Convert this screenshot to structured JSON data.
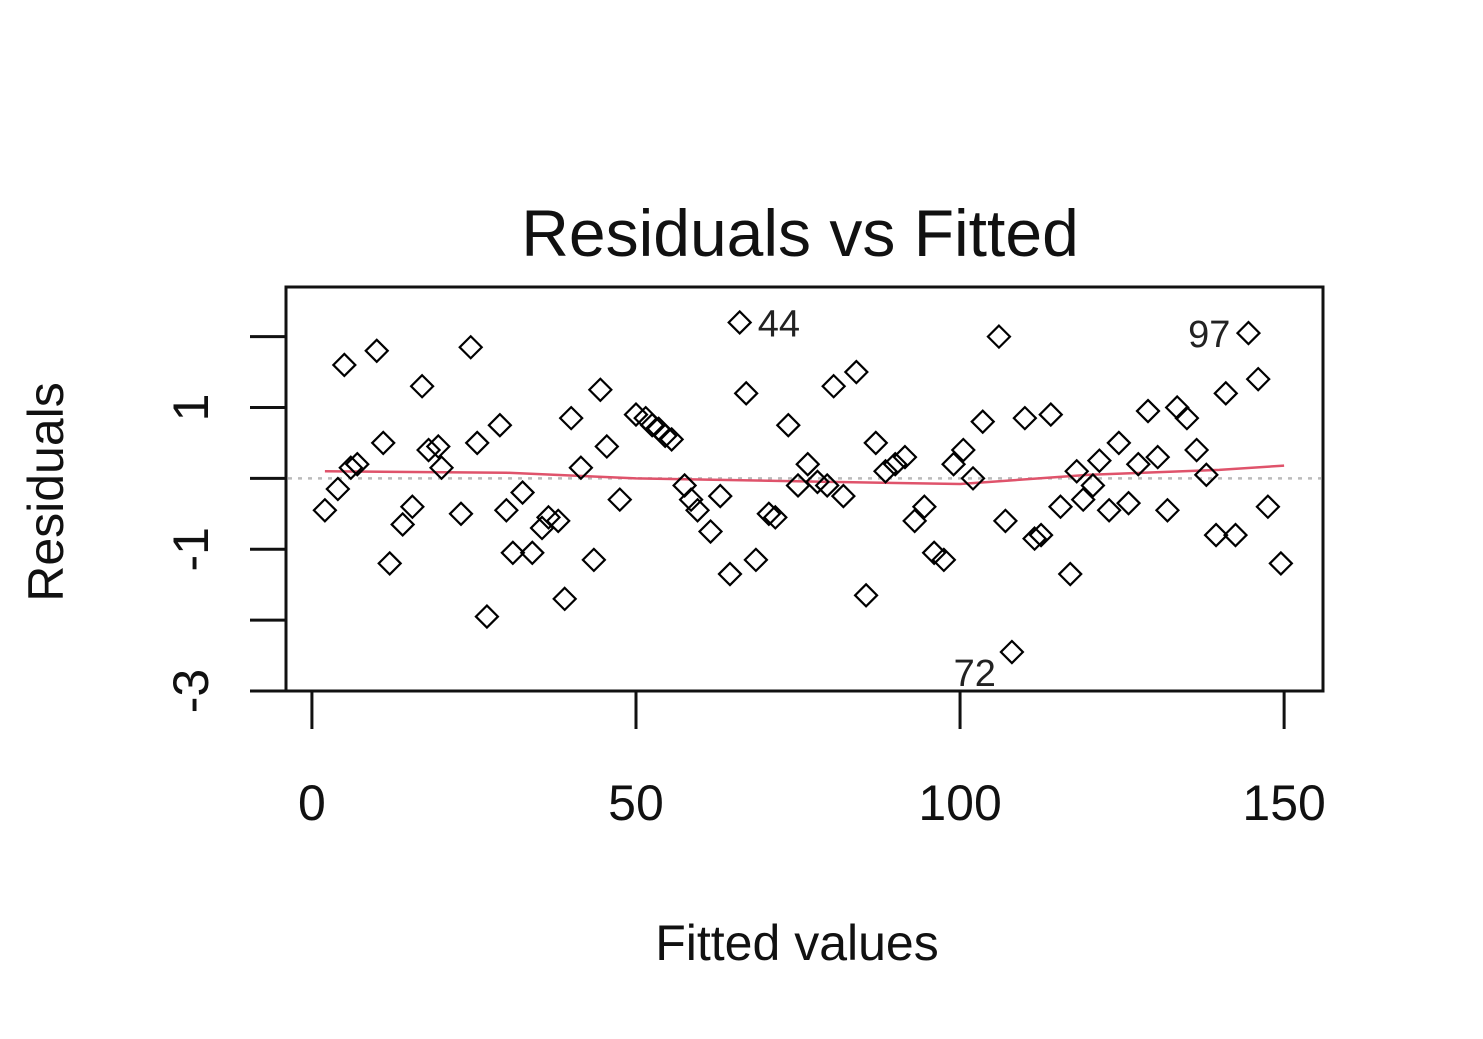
{
  "chart_data": {
    "type": "scatter",
    "title": "Residuals vs Fitted",
    "xlabel": "Fitted values",
    "ylabel": "Residuals",
    "xlim": [
      -4,
      156
    ],
    "ylim": [
      -3,
      2.7
    ],
    "x_ticks": [
      0,
      50,
      100,
      150
    ],
    "x_tick_labels": [
      "0",
      "50",
      "100",
      "150"
    ],
    "y_ticks": [
      -3,
      -2,
      -1,
      0,
      1,
      2
    ],
    "y_tick_labels": [
      "-3",
      "",
      "-1",
      "",
      "1",
      ""
    ],
    "grid": false,
    "reference_line": {
      "y": 0,
      "style": "dotted",
      "color": "#bbbbbb"
    },
    "smoother_color": "#df536b",
    "point_color": "#000000",
    "point_marker": "open-diamond",
    "points": [
      [
        2,
        -0.45
      ],
      [
        4,
        -0.15
      ],
      [
        5,
        1.6
      ],
      [
        6,
        0.15
      ],
      [
        7,
        0.2
      ],
      [
        10,
        1.8
      ],
      [
        11,
        0.5
      ],
      [
        12,
        -1.2
      ],
      [
        14,
        -0.65
      ],
      [
        15.5,
        -0.4
      ],
      [
        17,
        1.3
      ],
      [
        18,
        0.4
      ],
      [
        19.5,
        0.45
      ],
      [
        20,
        0.15
      ],
      [
        23,
        -0.5
      ],
      [
        24.5,
        1.85
      ],
      [
        25.5,
        0.5
      ],
      [
        27,
        -1.95
      ],
      [
        29,
        0.75
      ],
      [
        30,
        -0.45
      ],
      [
        31,
        -1.05
      ],
      [
        32.5,
        -0.2
      ],
      [
        34,
        -1.05
      ],
      [
        35.5,
        -0.7
      ],
      [
        36.5,
        -0.55
      ],
      [
        38,
        -0.6
      ],
      [
        39,
        -1.7
      ],
      [
        40,
        0.85
      ],
      [
        41.5,
        0.15
      ],
      [
        43.5,
        -1.15
      ],
      [
        44.5,
        1.25
      ],
      [
        45.5,
        0.45
      ],
      [
        47.5,
        -0.3
      ],
      [
        50,
        0.9
      ],
      [
        51.5,
        0.85
      ],
      [
        52.5,
        0.75
      ],
      [
        53.5,
        0.7
      ],
      [
        54.5,
        0.6
      ],
      [
        55.5,
        0.55
      ],
      [
        57.5,
        -0.1
      ],
      [
        58.5,
        -0.3
      ],
      [
        59.5,
        -0.45
      ],
      [
        61.5,
        -0.75
      ],
      [
        63,
        -0.25
      ],
      [
        64.5,
        -1.35
      ],
      [
        66,
        2.2
      ],
      [
        67,
        1.2
      ],
      [
        68.5,
        -1.15
      ],
      [
        70.5,
        -0.5
      ],
      [
        71.5,
        -0.55
      ],
      [
        73.5,
        0.75
      ],
      [
        75,
        -0.1
      ],
      [
        76.5,
        0.2
      ],
      [
        78,
        -0.05
      ],
      [
        79.5,
        -0.1
      ],
      [
        80.5,
        1.3
      ],
      [
        82,
        -0.25
      ],
      [
        84,
        1.5
      ],
      [
        85.5,
        -1.65
      ],
      [
        87,
        0.5
      ],
      [
        88.5,
        0.1
      ],
      [
        90,
        0.2
      ],
      [
        91.5,
        0.3
      ],
      [
        93,
        -0.6
      ],
      [
        94.5,
        -0.4
      ],
      [
        96,
        -1.05
      ],
      [
        97.5,
        -1.15
      ],
      [
        99,
        0.2
      ],
      [
        100.5,
        0.4
      ],
      [
        102,
        0.0
      ],
      [
        103.5,
        0.8
      ],
      [
        106,
        2.0
      ],
      [
        107,
        -0.6
      ],
      [
        108,
        -2.45
      ],
      [
        110,
        0.85
      ],
      [
        111.5,
        -0.85
      ],
      [
        112.5,
        -0.8
      ],
      [
        114,
        0.9
      ],
      [
        115.5,
        -0.4
      ],
      [
        117,
        -1.35
      ],
      [
        118,
        0.1
      ],
      [
        119,
        -0.3
      ],
      [
        120.5,
        -0.1
      ],
      [
        121.5,
        0.25
      ],
      [
        123,
        -0.45
      ],
      [
        124.5,
        0.5
      ],
      [
        126,
        -0.35
      ],
      [
        127.5,
        0.2
      ],
      [
        129,
        0.95
      ],
      [
        130.5,
        0.3
      ],
      [
        132,
        -0.45
      ],
      [
        133.5,
        1.0
      ],
      [
        135,
        0.85
      ],
      [
        136.5,
        0.4
      ],
      [
        138,
        0.05
      ],
      [
        139.5,
        -0.8
      ],
      [
        141,
        1.2
      ],
      [
        142.5,
        -0.8
      ],
      [
        144.5,
        2.05
      ],
      [
        146,
        1.4
      ],
      [
        147.5,
        -0.4
      ],
      [
        149.5,
        -1.2
      ]
    ],
    "labeled_points": [
      {
        "label": "44",
        "x": 66,
        "y": 2.2
      },
      {
        "label": "97",
        "x": 144.5,
        "y": 2.05
      },
      {
        "label": "72",
        "x": 108,
        "y": -2.45
      }
    ],
    "smoother": [
      [
        2,
        0.1
      ],
      [
        30,
        0.08
      ],
      [
        50,
        0.0
      ],
      [
        80,
        -0.05
      ],
      [
        100,
        -0.08
      ],
      [
        120,
        0.05
      ],
      [
        140,
        0.12
      ],
      [
        150,
        0.18
      ]
    ]
  }
}
